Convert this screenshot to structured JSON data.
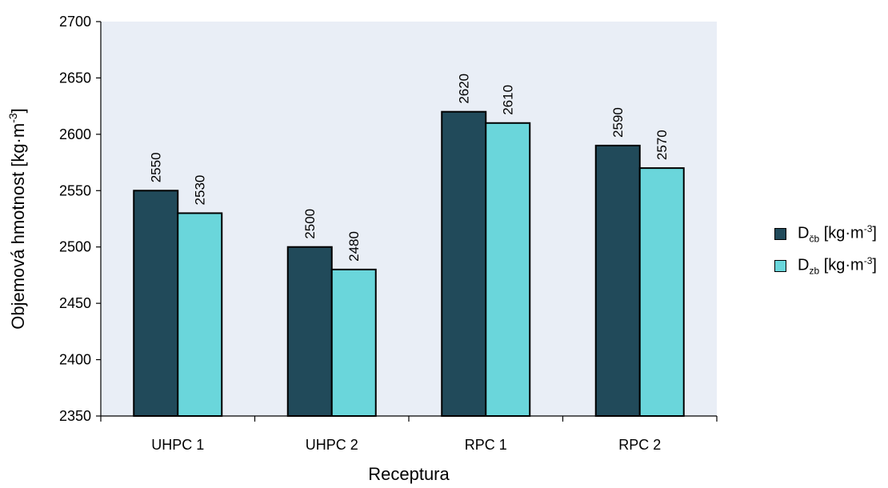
{
  "chart_data": {
    "type": "bar",
    "categories": [
      "UHPC 1",
      "UHPC 2",
      "RPC 1",
      "RPC 2"
    ],
    "series": [
      {
        "name": "Dčb [kg·m-3]",
        "name_base": "D",
        "name_sub": "čb",
        "name_unit": "[kg·m",
        "name_sup": "-3",
        "name_close": "]",
        "color": "#214a5a",
        "values": [
          2550,
          2500,
          2620,
          2590
        ]
      },
      {
        "name": "Dzb [kg·m-3]",
        "name_base": "D",
        "name_sub": "zb",
        "name_unit": "[kg·m",
        "name_sup": "-3",
        "name_close": "]",
        "color": "#6ad6db",
        "values": [
          2530,
          2480,
          2610,
          2570
        ]
      }
    ],
    "xlabel": "Receptura",
    "ylabel_base": "Objemová hmotnost [kg·m",
    "ylabel_sup": "-3",
    "ylabel_close": "]",
    "ylim": [
      2350,
      2700
    ],
    "yticks": [
      2350,
      2400,
      2450,
      2500,
      2550,
      2600,
      2650,
      2700
    ],
    "plot_background": "#e9eef6",
    "legend_position": "right",
    "grid": false
  }
}
